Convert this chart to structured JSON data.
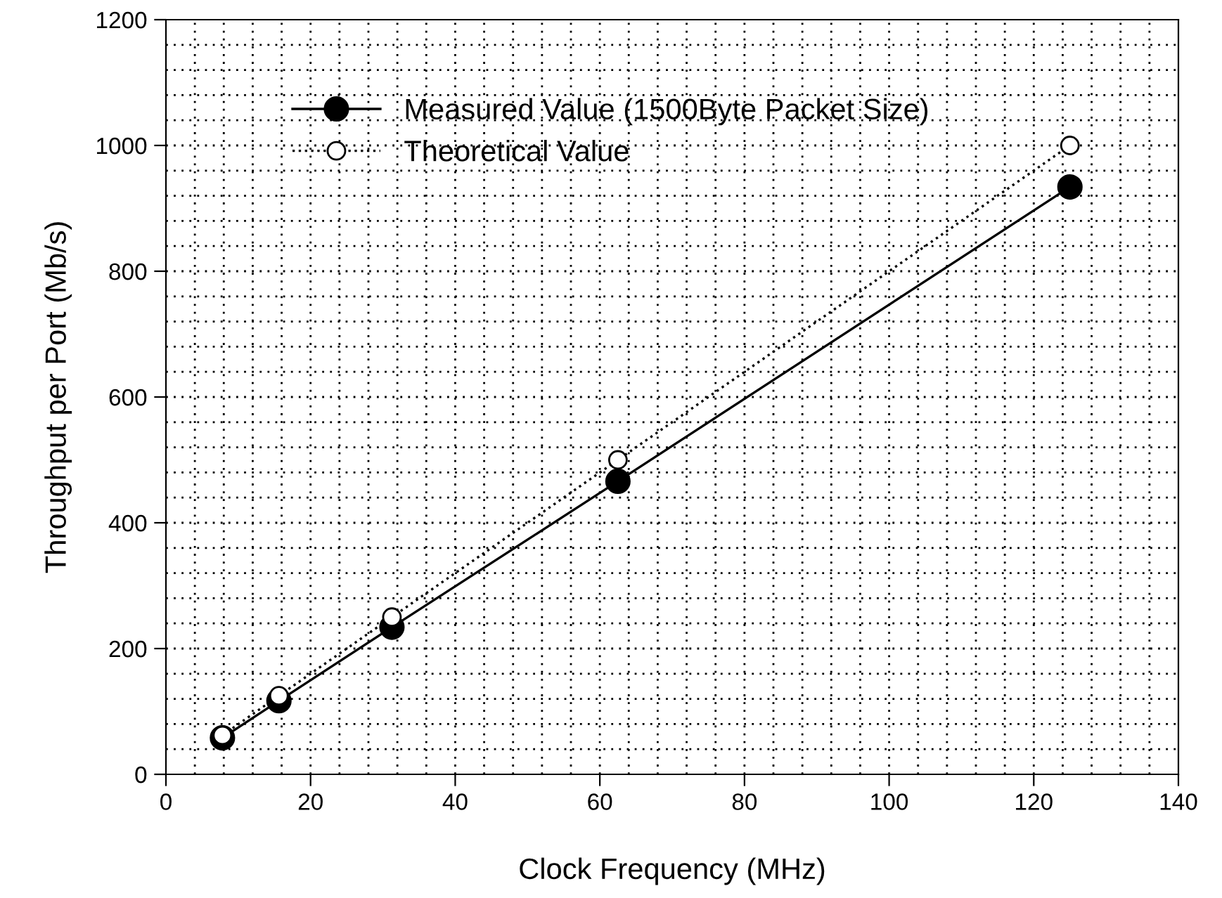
{
  "chart_data": {
    "type": "line",
    "xlabel": "Clock Frequency (MHz)",
    "ylabel": "Throughput per Port (Mb/s)",
    "x": [
      7.8125,
      15.625,
      31.25,
      62.5,
      125
    ],
    "series": [
      {
        "name": "Measured Value (1500Byte Packet Size)",
        "color": "#000000",
        "values": [
          58,
          117,
          234,
          466,
          934
        ],
        "marker": "circle",
        "line_style": "solid"
      },
      {
        "name": "Theoretical Value",
        "color": "#000000",
        "values": [
          62,
          125,
          250,
          500,
          1000
        ],
        "marker": "circle",
        "line_style": "dotted"
      }
    ],
    "xlim": [
      0,
      140
    ],
    "xticks": [
      0,
      20,
      40,
      60,
      80,
      100,
      120,
      140
    ],
    "ylim": [
      0,
      1200
    ],
    "yticks": [
      0,
      200,
      400,
      600,
      800,
      1000,
      1200
    ],
    "grid": true,
    "legend": "top left"
  }
}
